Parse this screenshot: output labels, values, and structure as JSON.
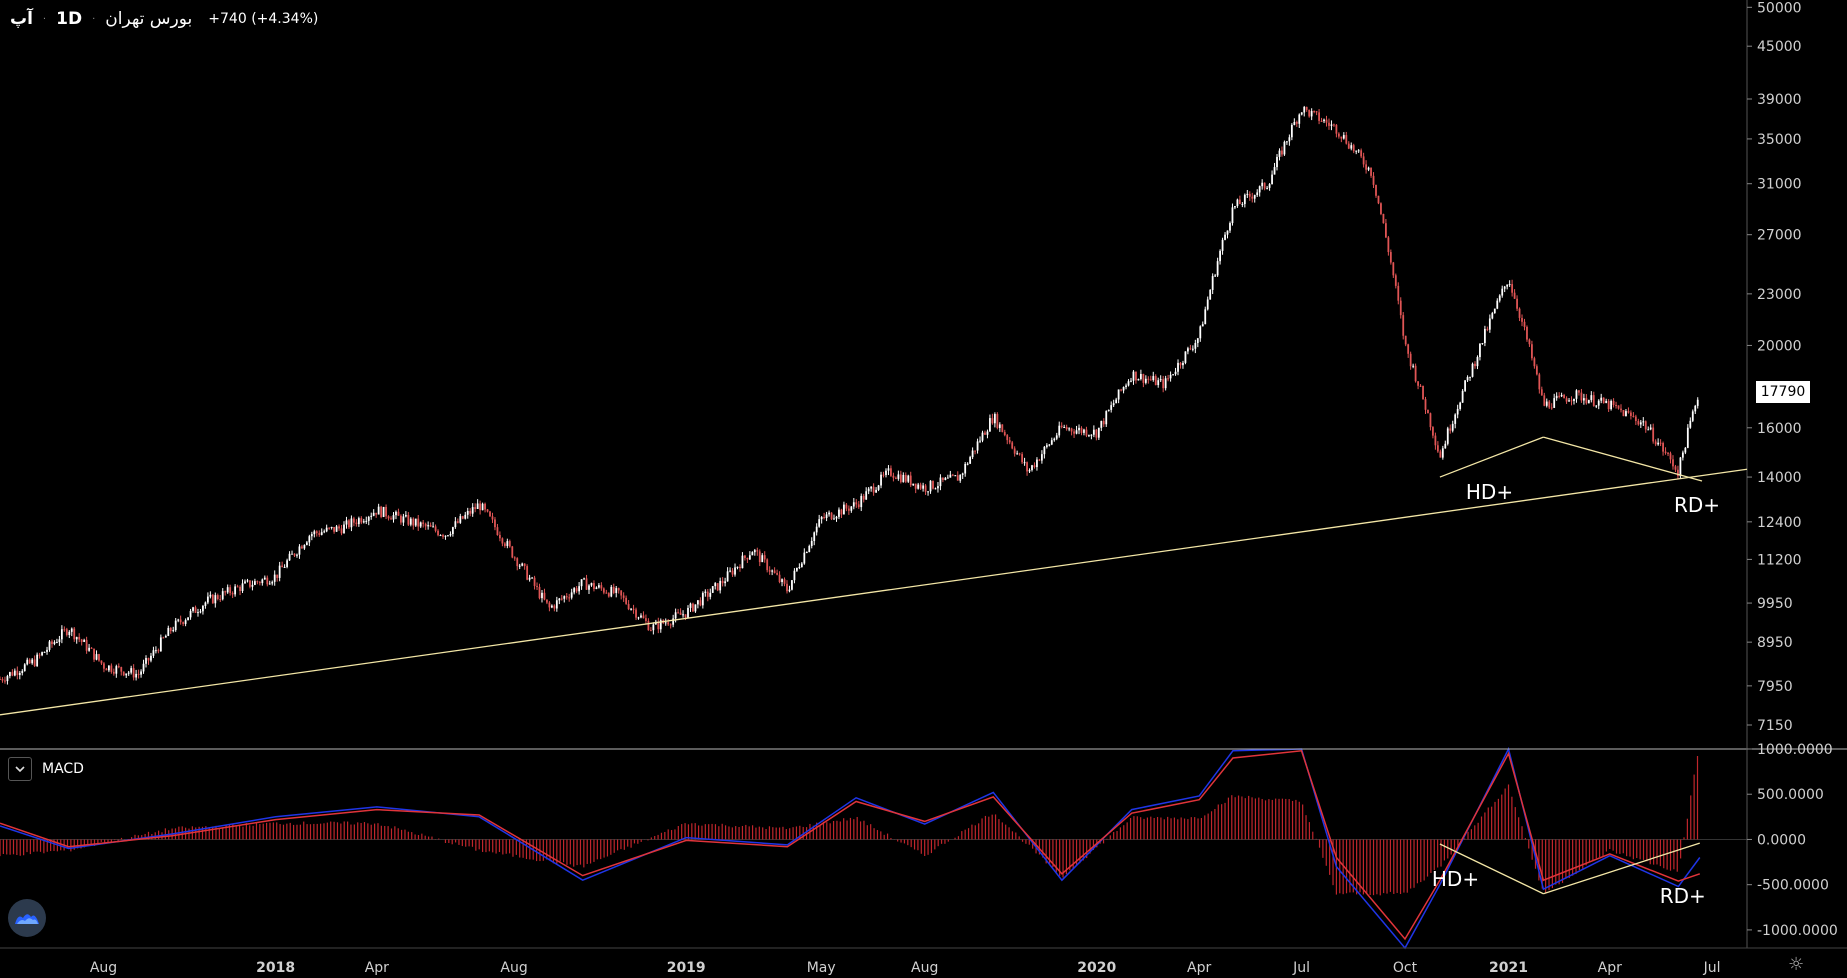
{
  "header": {
    "symbol": "آپ",
    "interval": "1D",
    "exchange": "بورس تهران",
    "change": "+740 (+4.34%)"
  },
  "macd_panel": {
    "label": "MACD"
  },
  "last_price_label": "17790",
  "chart_data": [
    {
      "type": "candlestick",
      "title": "",
      "y_axis": {
        "scale": "log",
        "ticks": [
          7150,
          7950,
          8950,
          9950,
          11200,
          12400,
          14000,
          16000,
          20000,
          23000,
          27000,
          31000,
          35000,
          39000,
          45000,
          50000
        ],
        "tick_labels": [
          "7150",
          "7950",
          "8950",
          "9950",
          "11200",
          "12400",
          "14000",
          "16000",
          "20000",
          "23000",
          "27000",
          "31000",
          "35000",
          "39000",
          "45000",
          "50000"
        ],
        "range": [
          6700,
          51000
        ]
      },
      "x_axis": {
        "tick_labels": [
          "Aug",
          "2018",
          "Apr",
          "Aug",
          "2019",
          "May",
          "Aug",
          "2020",
          "Apr",
          "Jul",
          "Oct",
          "2021",
          "Apr",
          "Jul"
        ],
        "tick_dates": [
          "2017-08",
          "2018-01",
          "2018-04",
          "2018-08",
          "2019-01",
          "2019-05",
          "2019-08",
          "2020-01",
          "2020-04",
          "2020-07",
          "2020-10",
          "2021-01",
          "2021-04",
          "2021-07"
        ],
        "range": [
          "2017-05",
          "2021-08"
        ]
      },
      "last_price": 17790,
      "approx_price_path": [
        [
          "2017-05",
          8100
        ],
        [
          "2017-06",
          8500
        ],
        [
          "2017-07",
          9300
        ],
        [
          "2017-08",
          8400
        ],
        [
          "2017-09",
          8200
        ],
        [
          "2017-10",
          9300
        ],
        [
          "2017-11",
          10000
        ],
        [
          "2017-12",
          10400
        ],
        [
          "2018-01",
          10700
        ],
        [
          "2018-02",
          12000
        ],
        [
          "2018-03",
          12200
        ],
        [
          "2018-04",
          12800
        ],
        [
          "2018-05",
          12400
        ],
        [
          "2018-06",
          12000
        ],
        [
          "2018-07",
          13000
        ],
        [
          "2018-08",
          11300
        ],
        [
          "2018-09",
          9800
        ],
        [
          "2018-10",
          10500
        ],
        [
          "2018-11",
          10200
        ],
        [
          "2018-12",
          9300
        ],
        [
          "2019-01",
          9700
        ],
        [
          "2019-02",
          10500
        ],
        [
          "2019-03",
          11500
        ],
        [
          "2019-04",
          10300
        ],
        [
          "2019-05",
          12500
        ],
        [
          "2019-06",
          13000
        ],
        [
          "2019-07",
          14200
        ],
        [
          "2019-08",
          13600
        ],
        [
          "2019-09",
          14000
        ],
        [
          "2019-10",
          16500
        ],
        [
          "2019-11",
          14200
        ],
        [
          "2019-12",
          16000
        ],
        [
          "2020-01",
          15800
        ],
        [
          "2020-02",
          18500
        ],
        [
          "2020-03",
          18000
        ],
        [
          "2020-04",
          20500
        ],
        [
          "2020-05",
          29000
        ],
        [
          "2020-06",
          31000
        ],
        [
          "2020-07",
          38000
        ],
        [
          "2020-08",
          36000
        ],
        [
          "2020-09",
          32000
        ],
        [
          "2020-10",
          20000
        ],
        [
          "2020-11",
          14800
        ],
        [
          "2020-12",
          19000
        ],
        [
          "2021-01",
          24000
        ],
        [
          "2021-02",
          17000
        ],
        [
          "2021-03",
          17500
        ],
        [
          "2021-04",
          17000
        ],
        [
          "2021-05",
          16200
        ],
        [
          "2021-06",
          14200
        ],
        [
          "2021-06-20",
          17790
        ]
      ],
      "trendlines": [
        {
          "from": [
            "2017-05",
            7350
          ],
          "to": [
            "2021-08",
            14300
          ]
        },
        {
          "from": [
            "2020-11",
            14000
          ],
          "to": [
            "2021-02",
            15600
          ],
          "label": "HD+"
        },
        {
          "from": [
            "2021-02",
            15600
          ],
          "to": [
            "2021-06-22",
            13850
          ],
          "label": "RD+"
        }
      ]
    },
    {
      "type": "line",
      "title": "MACD",
      "y_axis": {
        "ticks": [
          1000,
          500,
          0,
          -500,
          -1000
        ],
        "tick_labels": [
          "1000.0000",
          "500.0000",
          "0.0000",
          "-500.0000",
          "-1000.0000"
        ],
        "range": [
          -1200,
          1000
        ]
      },
      "series": [
        {
          "type": "line",
          "color": "#1f35e6",
          "values": [
            [
              "2017-05",
              150
            ],
            [
              "2017-07",
              -100
            ],
            [
              "2017-10",
              60
            ],
            [
              "2018-01",
              250
            ],
            [
              "2018-04",
              360
            ],
            [
              "2018-07",
              250
            ],
            [
              "2018-10",
              -450
            ],
            [
              "2019-01",
              20
            ],
            [
              "2019-04",
              -60
            ],
            [
              "2019-06",
              460
            ],
            [
              "2019-08",
              170
            ],
            [
              "2019-10",
              520
            ],
            [
              "2019-12",
              -450
            ],
            [
              "2020-02",
              330
            ],
            [
              "2020-04",
              480
            ],
            [
              "2020-05",
              980
            ],
            [
              "2020-07",
              1050
            ],
            [
              "2020-08",
              -300
            ],
            [
              "2020-10",
              -1200
            ],
            [
              "2020-11",
              -500
            ],
            [
              "2021-01",
              1050
            ],
            [
              "2021-02",
              -550
            ],
            [
              "2021-04",
              -180
            ],
            [
              "2021-06",
              -520
            ],
            [
              "2021-06-20",
              -200
            ]
          ]
        },
        {
          "type": "line",
          "color": "#e0343a",
          "values": [
            [
              "2017-05",
              180
            ],
            [
              "2017-07",
              -80
            ],
            [
              "2017-10",
              40
            ],
            [
              "2018-01",
              220
            ],
            [
              "2018-04",
              330
            ],
            [
              "2018-07",
              270
            ],
            [
              "2018-10",
              -400
            ],
            [
              "2019-01",
              -10
            ],
            [
              "2019-04",
              -80
            ],
            [
              "2019-06",
              420
            ],
            [
              "2019-08",
              200
            ],
            [
              "2019-10",
              470
            ],
            [
              "2019-12",
              -380
            ],
            [
              "2020-02",
              290
            ],
            [
              "2020-04",
              440
            ],
            [
              "2020-05",
              900
            ],
            [
              "2020-07",
              980
            ],
            [
              "2020-08",
              -200
            ],
            [
              "2020-10",
              -1100
            ],
            [
              "2020-11",
              -450
            ],
            [
              "2021-01",
              950
            ],
            [
              "2021-02",
              -450
            ],
            [
              "2021-04",
              -160
            ],
            [
              "2021-06",
              -460
            ],
            [
              "2021-06-20",
              -380
            ]
          ]
        }
      ],
      "histogram_color": "#c0262c",
      "trendlines": [
        {
          "from": [
            "2020-11",
            -50
          ],
          "to": [
            "2021-02",
            -600
          ],
          "label": "HD+"
        },
        {
          "from": [
            "2021-02",
            -600
          ],
          "to": [
            "2021-06-20",
            -40
          ],
          "label": "RD+"
        }
      ]
    }
  ]
}
